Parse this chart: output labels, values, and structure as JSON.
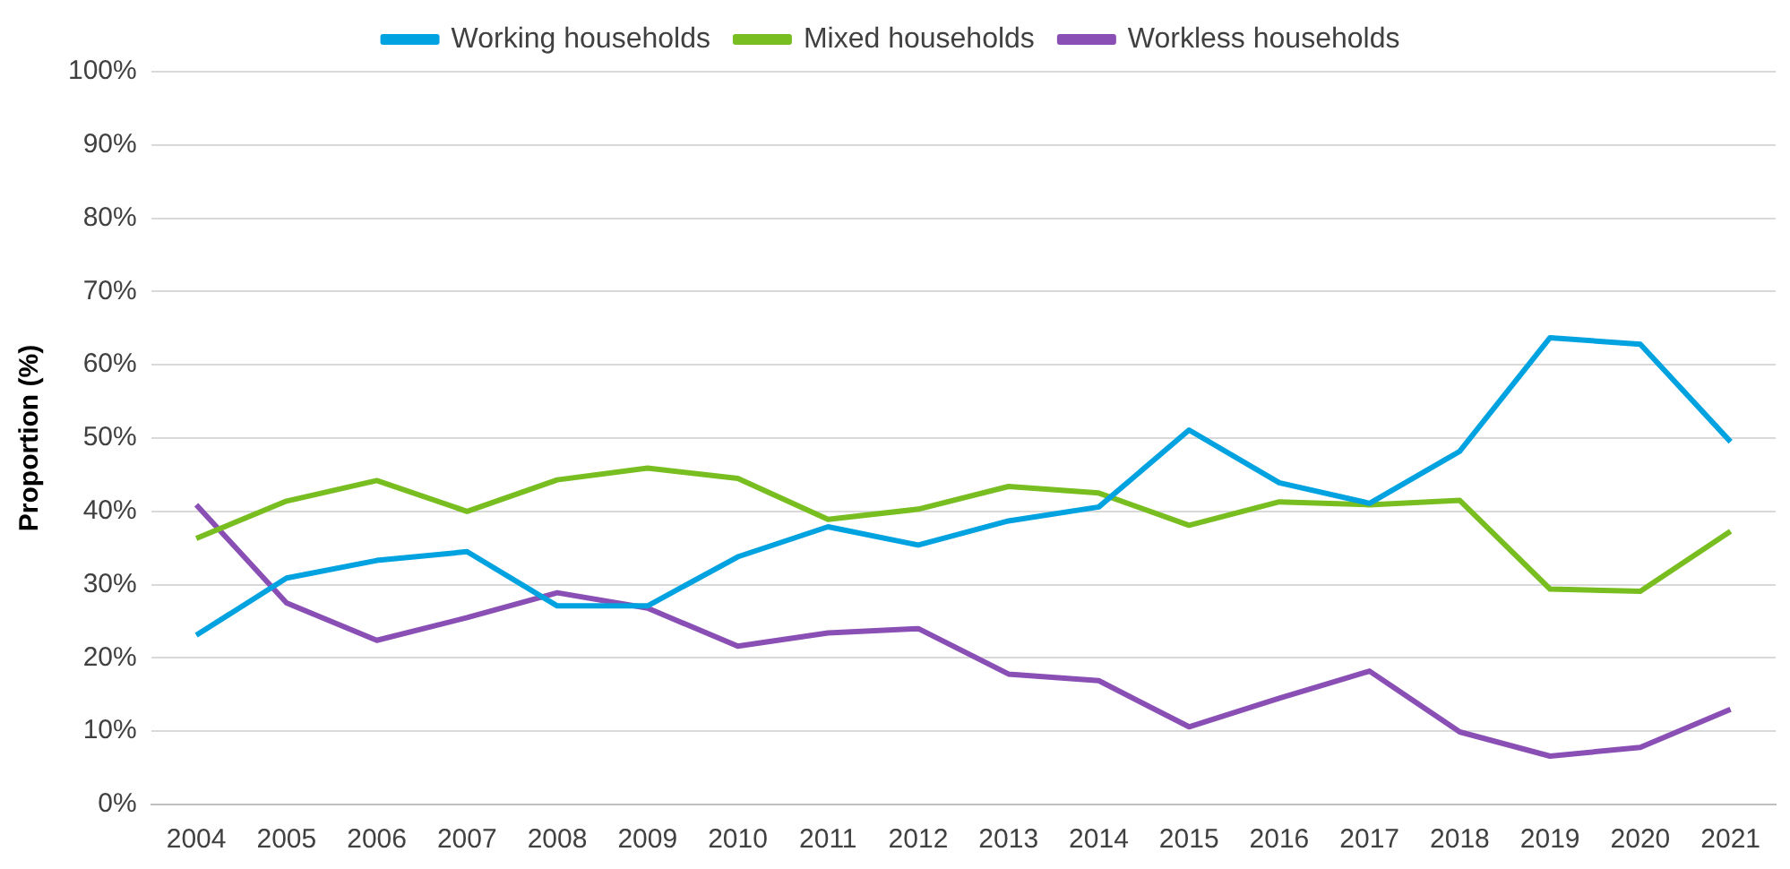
{
  "chart_data": {
    "type": "line",
    "ylabel": "Proportion (%)",
    "categories": [
      "2004",
      "2005",
      "2006",
      "2007",
      "2008",
      "2009",
      "2010",
      "2011",
      "2012",
      "2013",
      "2014",
      "2015",
      "2016",
      "2017",
      "2018",
      "2019",
      "2020",
      "2021"
    ],
    "series": [
      {
        "name": "Working households",
        "color": "#00a2e0",
        "values": [
          23.1,
          30.9,
          33.3,
          34.5,
          27.1,
          27.1,
          33.8,
          37.9,
          35.4,
          38.7,
          40.6,
          51.1,
          43.9,
          41.1,
          48.2,
          63.7,
          62.8,
          49.5
        ]
      },
      {
        "name": "Mixed households",
        "color": "#78be20",
        "values": [
          36.3,
          41.4,
          44.2,
          40.0,
          44.3,
          45.9,
          44.5,
          38.9,
          40.3,
          43.4,
          42.5,
          38.1,
          41.3,
          40.9,
          41.5,
          29.4,
          29.1,
          37.3
        ]
      },
      {
        "name": "Workless households",
        "color": "#8a4fb5",
        "values": [
          40.9,
          27.5,
          22.4,
          25.5,
          28.9,
          26.8,
          21.6,
          23.4,
          24.0,
          17.8,
          16.9,
          10.6,
          14.5,
          18.2,
          9.9,
          6.6,
          7.8,
          13.0
        ]
      }
    ],
    "ylim": [
      0,
      100
    ],
    "yticks": [
      {
        "value": 0,
        "label": "0%"
      },
      {
        "value": 10,
        "label": "10%"
      },
      {
        "value": 20,
        "label": "20%"
      },
      {
        "value": 30,
        "label": "30%"
      },
      {
        "value": 40,
        "label": "40%"
      },
      {
        "value": 50,
        "label": "50%"
      },
      {
        "value": 60,
        "label": "60%"
      },
      {
        "value": 70,
        "label": "70%"
      },
      {
        "value": 80,
        "label": "80%"
      },
      {
        "value": 90,
        "label": "90%"
      },
      {
        "value": 100,
        "label": "100%"
      }
    ],
    "grid": "y",
    "legend": "top",
    "marker": "none",
    "line_style": "solid"
  }
}
